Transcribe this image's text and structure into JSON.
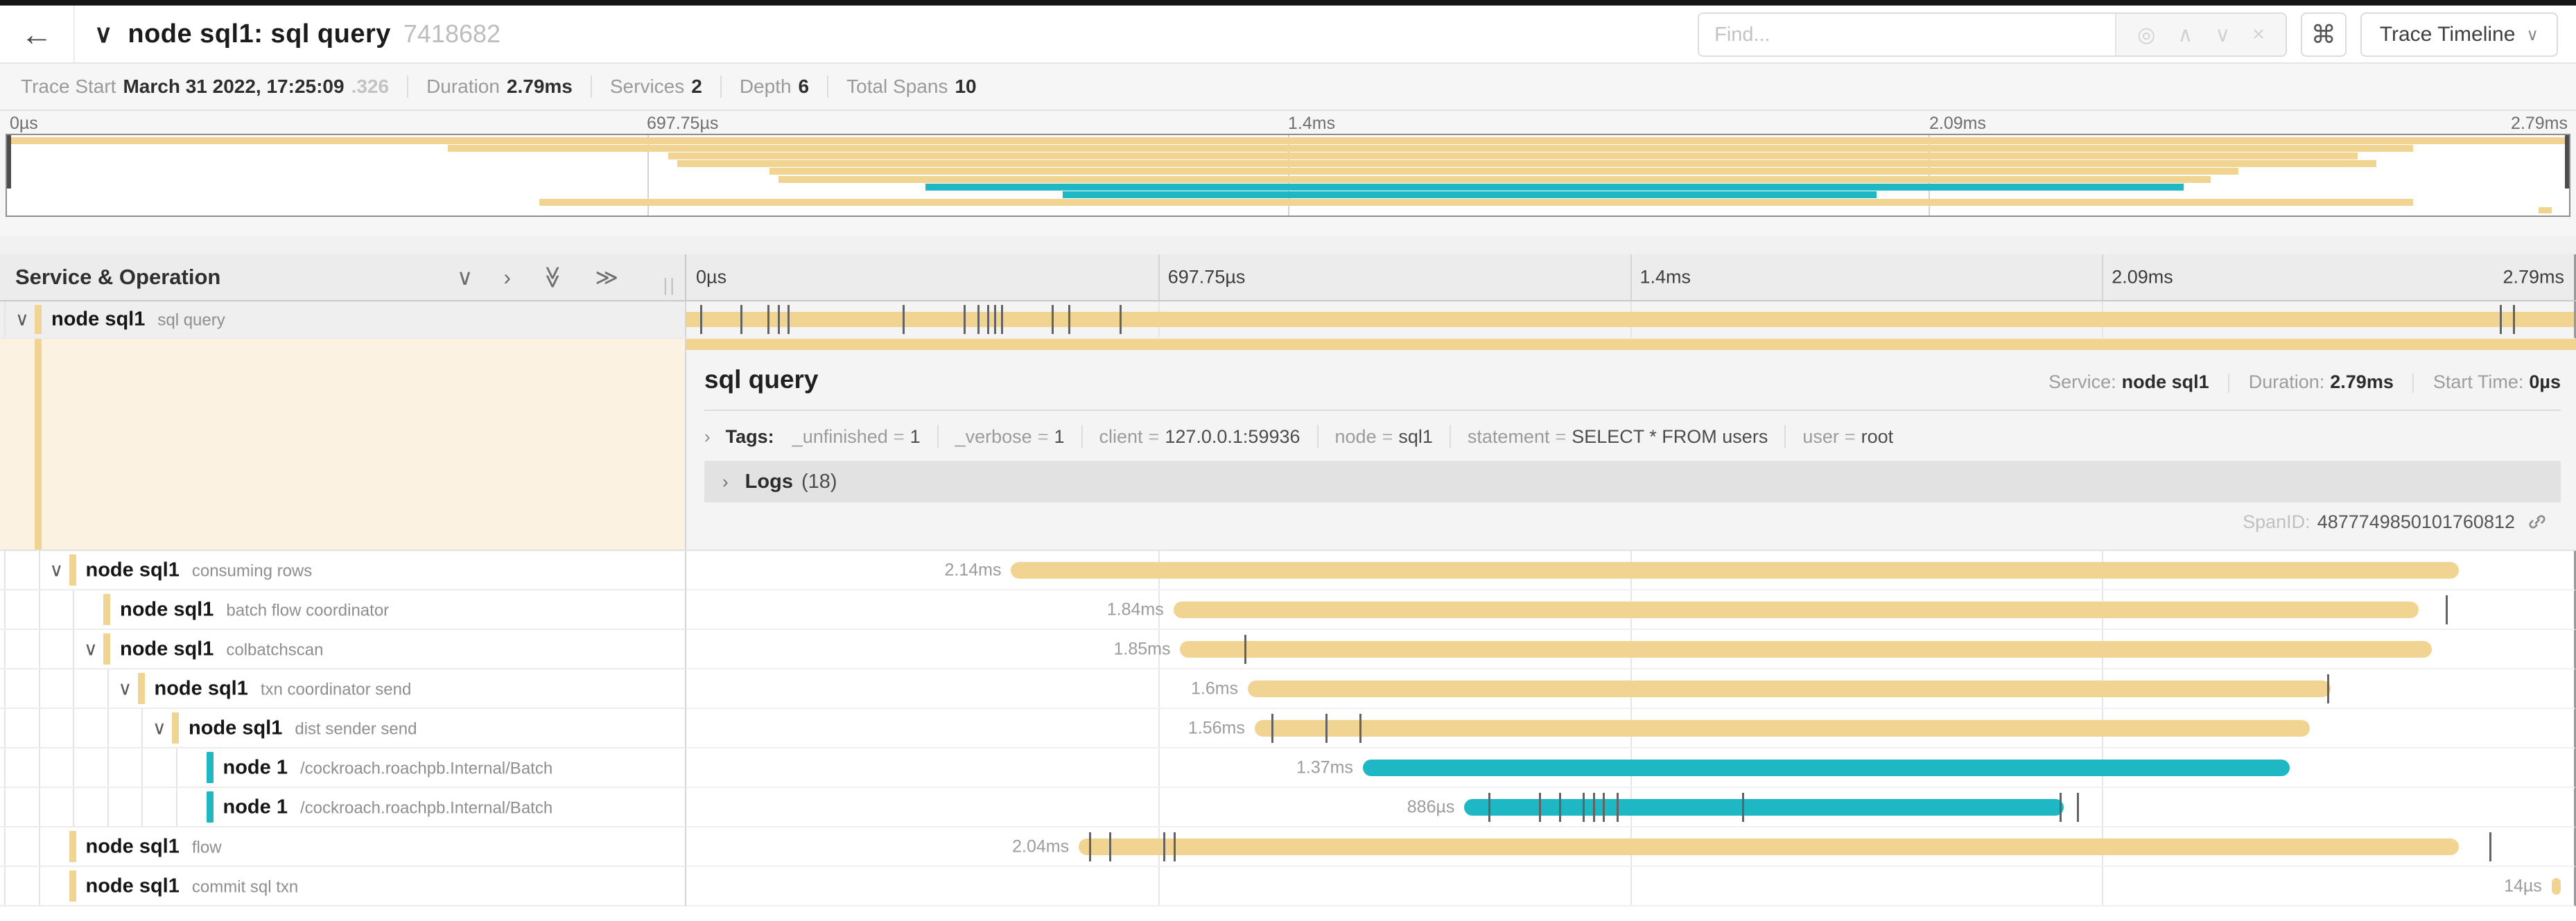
{
  "topbar": {
    "back_icon": "←",
    "collapse_icon": "∨",
    "title": "node sql1: sql query",
    "trace_id": "7418682",
    "find_placeholder": "Find...",
    "find_icons": [
      {
        "name": "locate-icon",
        "glyph": "◎"
      },
      {
        "name": "prev-match-icon",
        "glyph": "∧"
      },
      {
        "name": "next-match-icon",
        "glyph": "∨"
      },
      {
        "name": "clear-search-icon",
        "glyph": "×"
      }
    ],
    "kbd_label": "⌘",
    "view_button": "Trace Timeline",
    "view_chevron": "∨"
  },
  "summary": {
    "trace_start_label": "Trace Start",
    "trace_start_value": "March 31 2022, 17:25:09",
    "trace_start_frac": ".326",
    "duration_label": "Duration",
    "duration_value": "2.79ms",
    "services_label": "Services",
    "services_value": "2",
    "depth_label": "Depth",
    "depth_value": "6",
    "total_spans_label": "Total Spans",
    "total_spans_value": "10"
  },
  "timeline": {
    "total_ms": 2.79,
    "ticks": [
      "0µs",
      "697.75µs",
      "1.4ms",
      "2.09ms"
    ],
    "end_tick": "2.79ms"
  },
  "left_header": {
    "title": "Service & Operation",
    "icons": [
      {
        "name": "collapse-one-icon",
        "glyph": "∨",
        "rotate": 0
      },
      {
        "name": "expand-one-icon",
        "glyph": "›",
        "rotate": 0
      },
      {
        "name": "collapse-all-icon",
        "glyph": "≫",
        "rotate": 90
      },
      {
        "name": "expand-all-icon",
        "glyph": "≫",
        "rotate": 0
      }
    ],
    "drag_handle": "||"
  },
  "colors": {
    "tan": "#f2d492",
    "teal": "#1eb8c4",
    "tick": "#636363"
  },
  "spans": [
    {
      "service": "node sql1",
      "operation": "sql query",
      "depth": 0,
      "has_children": true,
      "color": "tan",
      "start_ms": 0,
      "end_ms": 2.79,
      "duration_label": "",
      "selected": true,
      "log_ticks_ms": [
        0.02,
        0.08,
        0.12,
        0.135,
        0.15,
        0.32,
        0.41,
        0.43,
        0.445,
        0.455,
        0.465,
        0.54,
        0.565,
        0.64,
        2.68,
        2.7
      ]
    },
    {
      "service": "node sql1",
      "operation": "consuming rows",
      "depth": 1,
      "has_children": true,
      "color": "tan",
      "start_ms": 0.48,
      "end_ms": 2.62,
      "duration_label": "2.14ms",
      "selected": false,
      "log_ticks_ms": []
    },
    {
      "service": "node sql1",
      "operation": "batch flow coordinator",
      "depth": 2,
      "has_children": false,
      "color": "tan",
      "start_ms": 0.72,
      "end_ms": 2.56,
      "duration_label": "1.84ms",
      "selected": false,
      "log_ticks_ms": [
        2.6
      ]
    },
    {
      "service": "node sql1",
      "operation": "colbatchscan",
      "depth": 2,
      "has_children": true,
      "color": "tan",
      "start_ms": 0.73,
      "end_ms": 2.58,
      "duration_label": "1.85ms",
      "selected": false,
      "log_ticks_ms": [
        0.825
      ]
    },
    {
      "service": "node sql1",
      "operation": "txn coordinator send",
      "depth": 3,
      "has_children": true,
      "color": "tan",
      "start_ms": 0.83,
      "end_ms": 2.43,
      "duration_label": "1.6ms",
      "selected": false,
      "log_ticks_ms": [
        2.425
      ]
    },
    {
      "service": "node sql1",
      "operation": "dist sender send",
      "depth": 4,
      "has_children": true,
      "color": "tan",
      "start_ms": 0.84,
      "end_ms": 2.4,
      "duration_label": "1.56ms",
      "selected": false,
      "log_ticks_ms": [
        0.865,
        0.945,
        0.995
      ]
    },
    {
      "service": "node 1",
      "operation": "/cockroach.roachpb.Internal/Batch",
      "depth": 5,
      "has_children": false,
      "color": "teal",
      "start_ms": 1.0,
      "end_ms": 2.37,
      "duration_label": "1.37ms",
      "selected": false,
      "log_ticks_ms": []
    },
    {
      "service": "node 1",
      "operation": "/cockroach.roachpb.Internal/Batch",
      "depth": 5,
      "has_children": false,
      "color": "teal",
      "start_ms": 1.15,
      "end_ms": 2.036,
      "duration_label": "886µs",
      "selected": false,
      "log_ticks_ms": [
        1.185,
        1.26,
        1.29,
        1.325,
        1.34,
        1.355,
        1.375,
        1.56,
        2.03,
        2.055
      ]
    },
    {
      "service": "node sql1",
      "operation": "flow",
      "depth": 1,
      "has_children": false,
      "color": "tan",
      "start_ms": 0.58,
      "end_ms": 2.62,
      "duration_label": "2.04ms",
      "selected": false,
      "log_ticks_ms": [
        0.595,
        0.625,
        0.705,
        0.72,
        2.665
      ]
    },
    {
      "service": "node sql1",
      "operation": "commit sql txn",
      "depth": 1,
      "has_children": false,
      "color": "tan",
      "start_ms": 2.757,
      "end_ms": 2.771,
      "duration_label": "14µs",
      "selected": false,
      "log_ticks_ms": []
    }
  ],
  "detail": {
    "title": "sql query",
    "service_label": "Service:",
    "service_value": "node sql1",
    "duration_label": "Duration:",
    "duration_value": "2.79ms",
    "start_label": "Start Time:",
    "start_value": "0µs",
    "tags_chevron": "›",
    "tags_label": "Tags:",
    "tags": [
      {
        "key": "_unfinished",
        "value": "1"
      },
      {
        "key": "_verbose",
        "value": "1"
      },
      {
        "key": "client",
        "value": "127.0.0.1:59936"
      },
      {
        "key": "node",
        "value": "sql1"
      },
      {
        "key": "statement",
        "value": "SELECT * FROM users"
      },
      {
        "key": "user",
        "value": "root"
      }
    ],
    "logs_chevron": "›",
    "logs_label": "Logs",
    "logs_count": "(18)",
    "span_id_label": "SpanID:",
    "span_id": "4877749850101760812"
  }
}
